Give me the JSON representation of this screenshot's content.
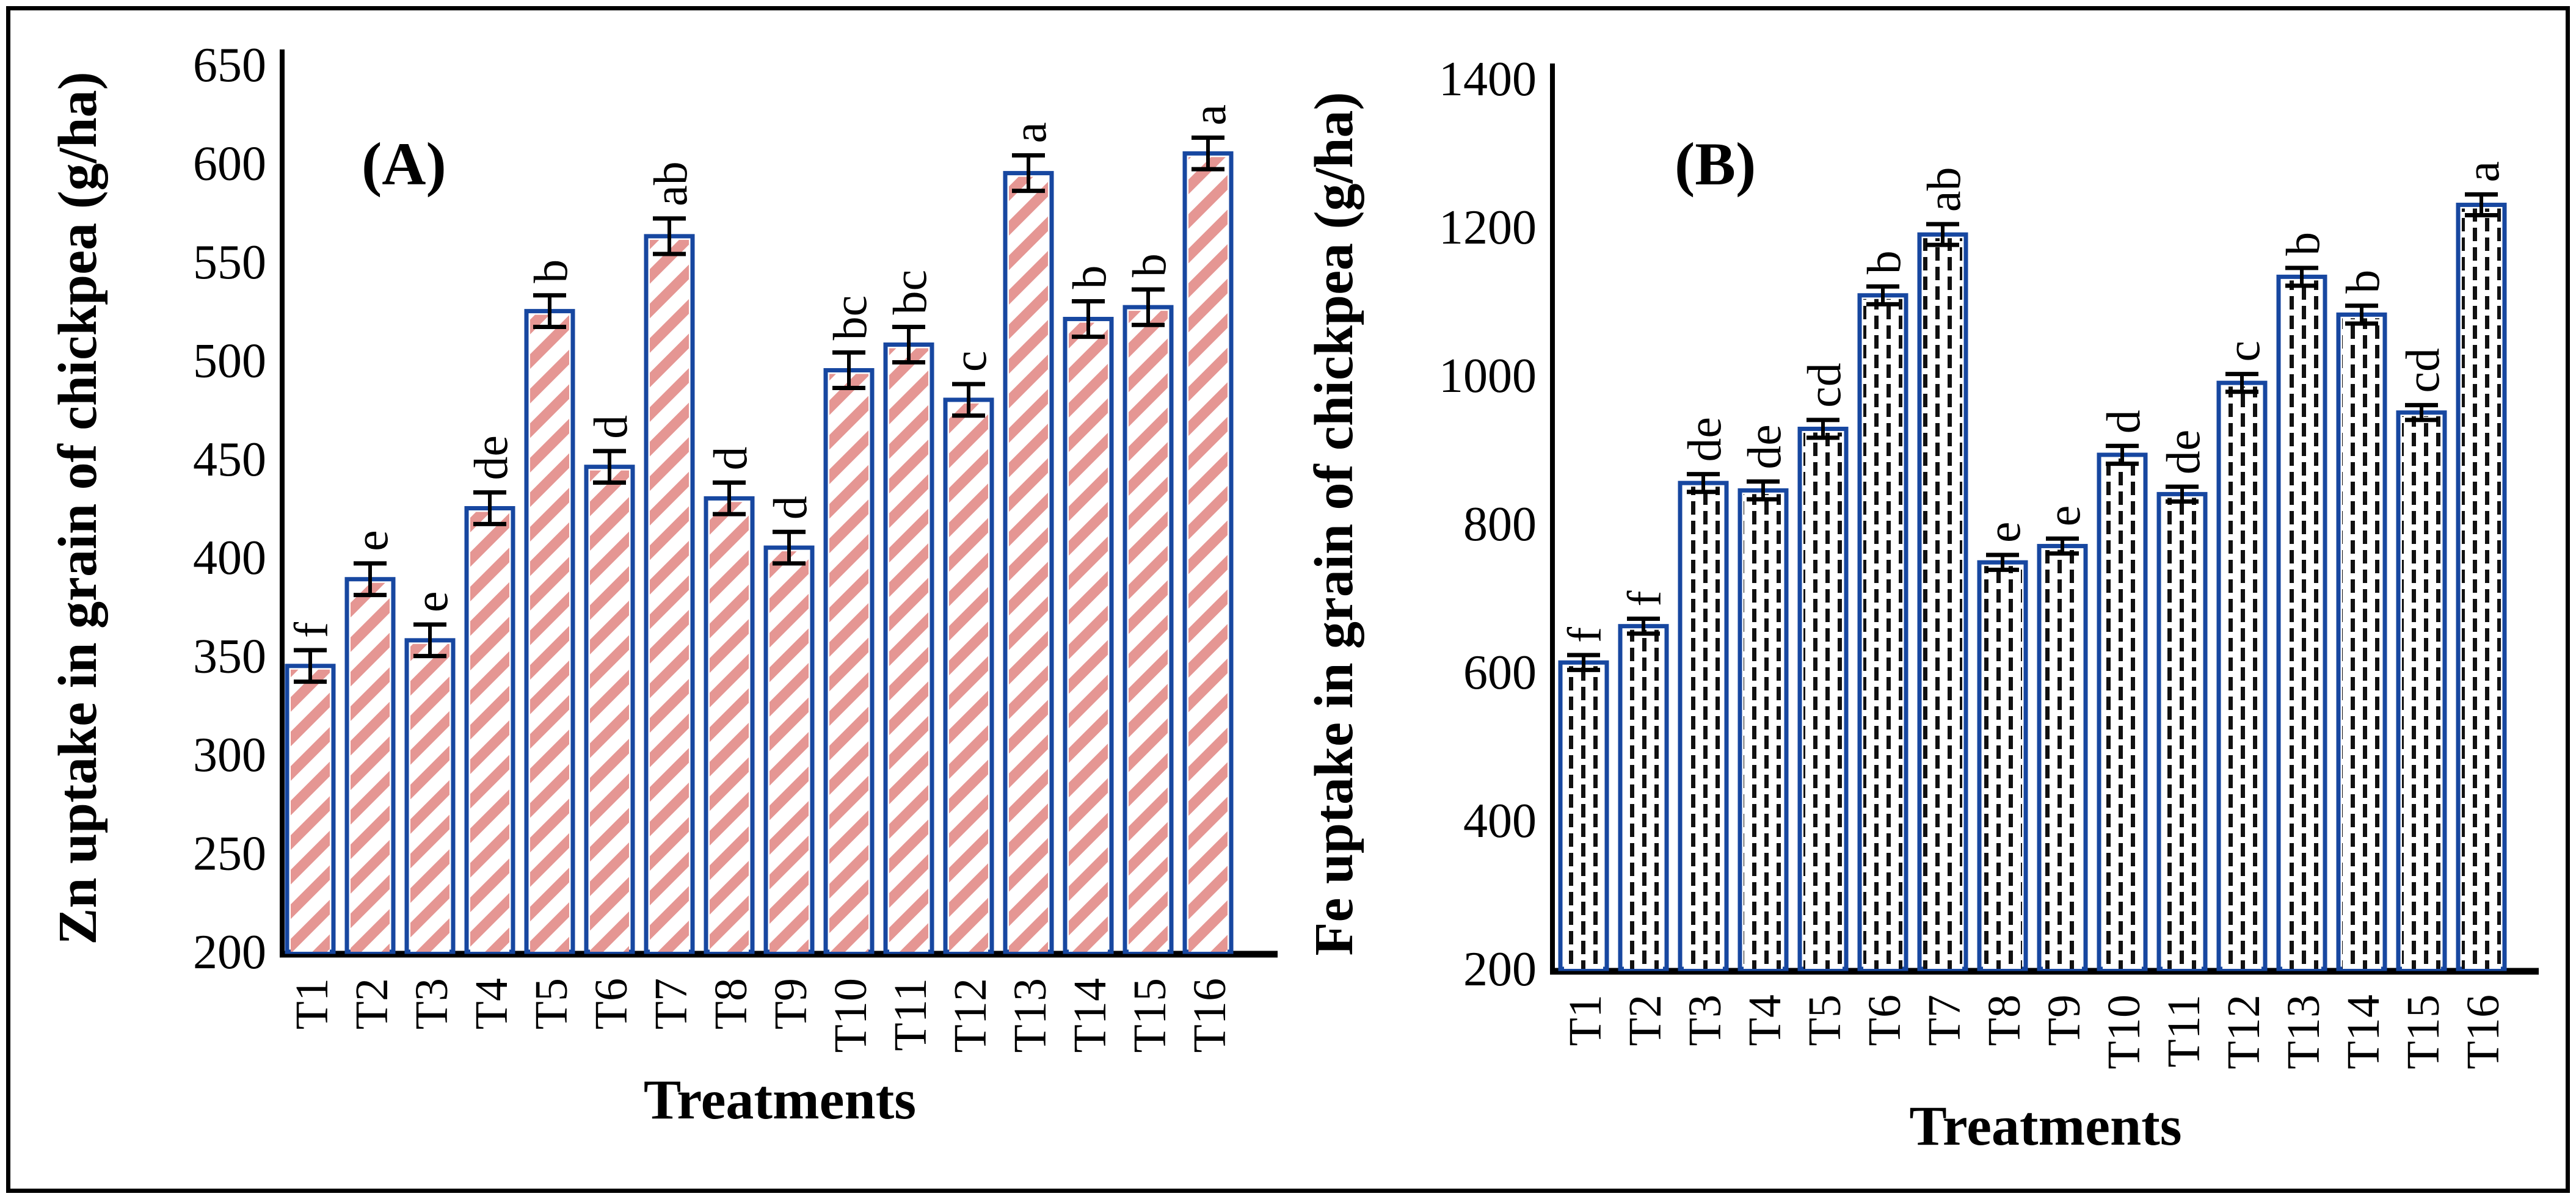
{
  "figure": {
    "background": "#ffffff",
    "border_color": "#000000",
    "bar_border_color": "#1747A0",
    "hatch_color": "#E59693",
    "dash_color": "#111111",
    "error_bar_color": "#000000"
  },
  "chart_data": [
    {
      "type": "bar",
      "panel_label": "(A)",
      "ylabel": "Zn uptake in grain of chickpea (g/ha)",
      "xlabel": "Treatments",
      "ylim": [
        200,
        650
      ],
      "yticks": [
        650,
        600,
        550,
        500,
        450,
        400,
        350,
        300,
        250,
        200
      ],
      "categories": [
        "T1",
        "T2",
        "T3",
        "T4",
        "T5",
        "T6",
        "T7",
        "T8",
        "T9",
        "T10",
        "T11",
        "T12",
        "T13",
        "T14",
        "T15",
        "T16"
      ],
      "values": [
        345,
        389,
        358,
        425,
        525,
        446,
        563,
        430,
        405,
        495,
        508,
        480,
        595,
        521,
        527,
        605
      ],
      "errors": [
        8,
        8,
        8,
        8,
        8,
        8,
        9,
        8,
        8,
        9,
        9,
        8,
        9,
        9,
        9,
        8
      ],
      "sig_letters": [
        "f",
        "e",
        "e",
        "de",
        "b",
        "d",
        "ab",
        "d",
        "d",
        "bc",
        "bc",
        "c",
        "a",
        "b",
        "b",
        "a"
      ],
      "bar_fill": "diagonal-red-hatch",
      "grid": false,
      "legend": "none"
    },
    {
      "type": "bar",
      "panel_label": "(B)",
      "ylabel": "Fe uptake in grain of chickpea (g/ha)",
      "xlabel": "Treatments",
      "ylim": [
        200,
        1400
      ],
      "yticks": [
        1400,
        1200,
        1000,
        800,
        600,
        400,
        200
      ],
      "categories": [
        "T1",
        "T2",
        "T3",
        "T4",
        "T5",
        "T6",
        "T7",
        "T8",
        "T9",
        "T10",
        "T11",
        "T12",
        "T13",
        "T14",
        "T15",
        "T16"
      ],
      "values": [
        613,
        662,
        855,
        845,
        928,
        1108,
        1190,
        748,
        770,
        893,
        840,
        990,
        1133,
        1082,
        950,
        1230
      ],
      "errors": [
        10,
        10,
        12,
        12,
        12,
        12,
        14,
        10,
        10,
        12,
        10,
        12,
        12,
        12,
        10,
        14
      ],
      "sig_letters": [
        "f",
        "f",
        "de",
        "de",
        "cd",
        "b",
        "ab",
        "e",
        "e",
        "d",
        "de",
        "c",
        "b",
        "b",
        "cd",
        "a"
      ],
      "bar_fill": "vertical-black-dashes",
      "grid": false,
      "legend": "none"
    }
  ]
}
